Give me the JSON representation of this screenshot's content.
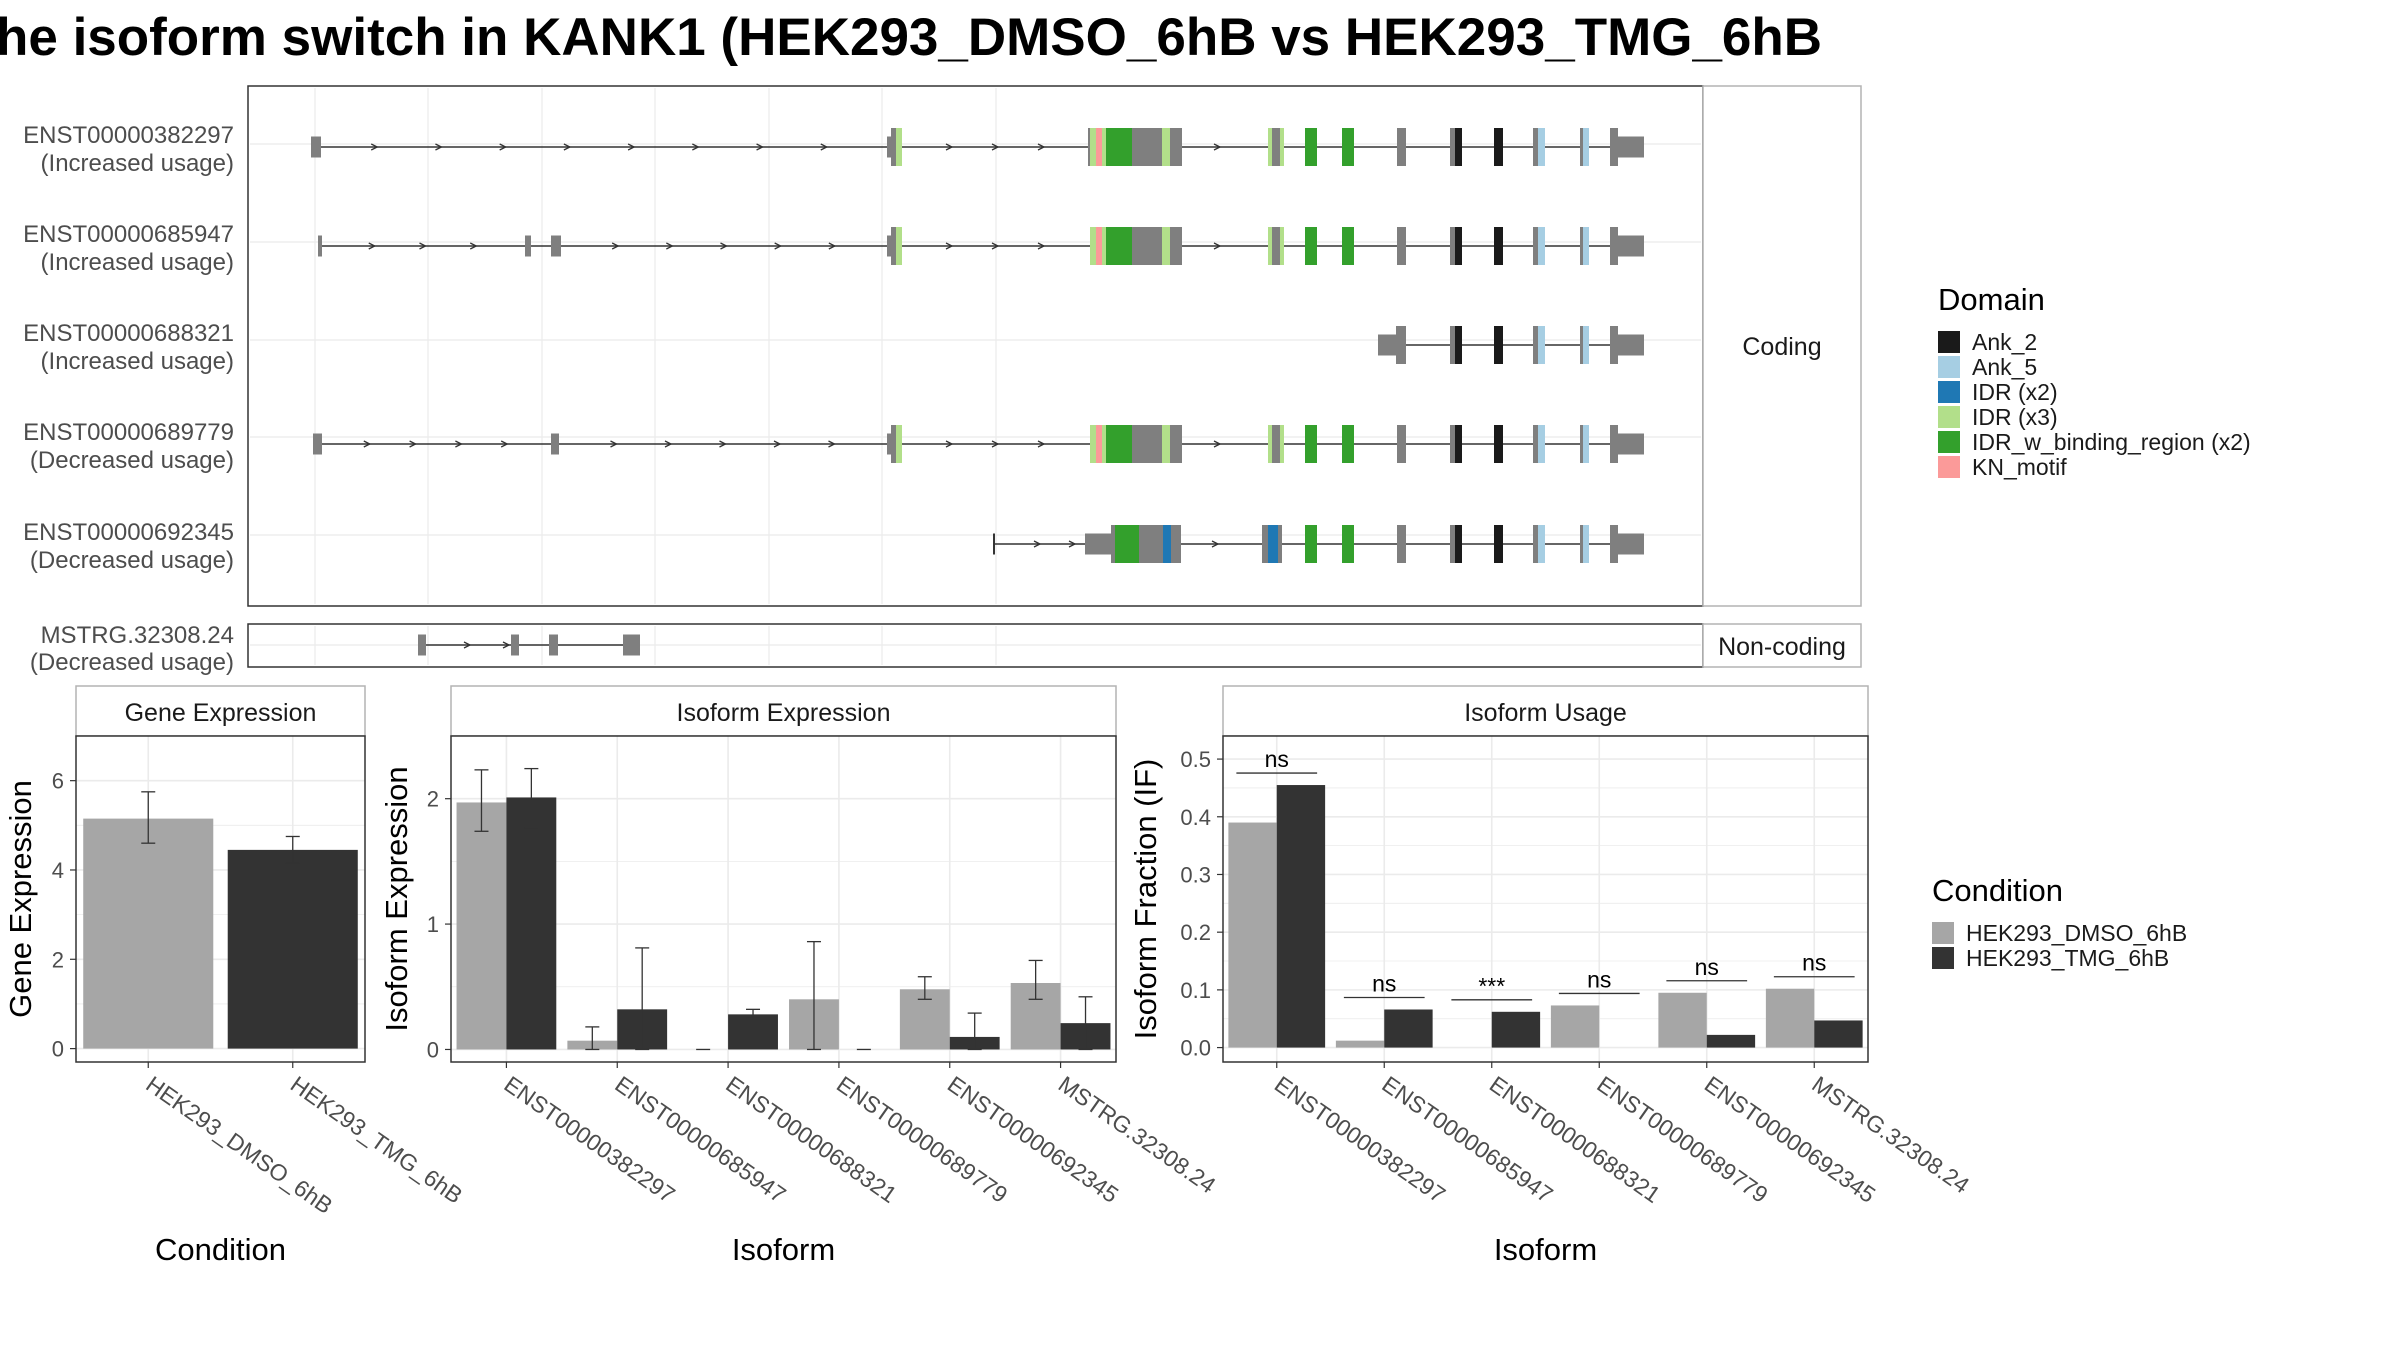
{
  "title": "he isoform switch in KANK1 (HEK293_DMSO_6hB vs HEK293_TMG_6hB",
  "colors": {
    "Ank_2": "#1a1a1a",
    "Ank_5": "#a6cee3",
    "IDR (x2)": "#1f78b4",
    "IDR (x3)": "#b2df8a",
    "IDR_w_binding_region (x2)": "#33a02c",
    "KN_motif": "#fb9a99",
    "exon": "#7f7f7f",
    "dmso": "#a6a6a6",
    "tmg": "#333333",
    "panel_border": "#555555",
    "grid": "#ebebeb",
    "strip": "#ffffff"
  },
  "isoform_labels": [
    {
      "id": "ENST00000382297",
      "usage": "(Increased usage)"
    },
    {
      "id": "ENST00000685947",
      "usage": "(Increased usage)"
    },
    {
      "id": "ENST00000688321",
      "usage": "(Increased usage)"
    },
    {
      "id": "ENST00000689779",
      "usage": "(Decreased usage)"
    },
    {
      "id": "ENST00000692345",
      "usage": "(Decreased usage)"
    }
  ],
  "noncoding_label": {
    "id": "MSTRG.32308.24",
    "usage": "(Decreased usage)"
  },
  "facet_coding": "Coding",
  "facet_noncoding": "Non-coding",
  "legend_domain": {
    "title": "Domain",
    "items": [
      "Ank_2",
      "Ank_5",
      "IDR (x2)",
      "IDR (x3)",
      "IDR_w_binding_region (x2)",
      "KN_motif"
    ]
  },
  "legend_condition": {
    "title": "Condition",
    "items": [
      "HEK293_DMSO_6hB",
      "HEK293_TMG_6hB"
    ]
  },
  "chart_data": [
    {
      "type": "bar",
      "title": "Gene Expression",
      "xlabel": "Condition",
      "ylabel": "Gene Expression",
      "ylim": [
        -0.3,
        7.0
      ],
      "yticks": [
        0,
        2,
        4,
        6
      ],
      "categories": [
        "HEK293_DMSO_6hB",
        "HEK293_TMG_6hB"
      ],
      "values": [
        5.15,
        4.45
      ],
      "errors": [
        [
          4.6,
          5.75
        ],
        [
          4.15,
          4.75
        ]
      ]
    },
    {
      "type": "bar",
      "title": "Isoform Expression",
      "xlabel": "Isoform",
      "ylabel": "Isoform Expression",
      "ylim": [
        -0.1,
        2.5
      ],
      "yticks": [
        0,
        1,
        2
      ],
      "categories": [
        "ENST00000382297",
        "ENST00000685947",
        "ENST00000688321",
        "ENST00000689779",
        "ENST00000692345",
        "MSTRG.32308.24"
      ],
      "series": [
        {
          "name": "HEK293_DMSO_6hB",
          "values": [
            1.97,
            0.07,
            0.0,
            0.4,
            0.48,
            0.53
          ],
          "errors": [
            [
              1.74,
              2.23
            ],
            [
              0.0,
              0.18
            ],
            null,
            [
              0.0,
              0.86
            ],
            [
              0.4,
              0.58
            ],
            [
              0.4,
              0.71
            ]
          ]
        },
        {
          "name": "HEK293_TMG_6hB",
          "values": [
            2.01,
            0.32,
            0.28,
            0.0,
            0.1,
            0.21
          ],
          "errors": [
            [
              1.77,
              2.24
            ],
            [
              0.0,
              0.81
            ],
            [
              0.25,
              0.32
            ],
            null,
            [
              0.0,
              0.29
            ],
            [
              0.0,
              0.42
            ]
          ]
        }
      ]
    },
    {
      "type": "bar",
      "title": "Isoform Usage",
      "xlabel": "Isoform",
      "ylabel": "Isoform Fraction (IF)",
      "ylim": [
        -0.025,
        0.54
      ],
      "yticks": [
        0.0,
        0.1,
        0.2,
        0.3,
        0.4,
        0.5
      ],
      "yticklabels": [
        "0.0",
        "0.1",
        "0.2",
        "0.3",
        "0.4",
        "0.5"
      ],
      "categories": [
        "ENST00000382297",
        "ENST00000685947",
        "ENST00000688321",
        "ENST00000689779",
        "ENST00000692345",
        "MSTRG.32308.24"
      ],
      "series": [
        {
          "name": "HEK293_DMSO_6hB",
          "values": [
            0.39,
            0.012,
            0.0,
            0.073,
            0.095,
            0.102
          ]
        },
        {
          "name": "HEK293_TMG_6hB",
          "values": [
            0.455,
            0.066,
            0.062,
            0.0,
            0.022,
            0.047
          ]
        }
      ],
      "significance": [
        "ns",
        "ns",
        "***",
        "ns",
        "ns",
        "ns"
      ]
    }
  ]
}
